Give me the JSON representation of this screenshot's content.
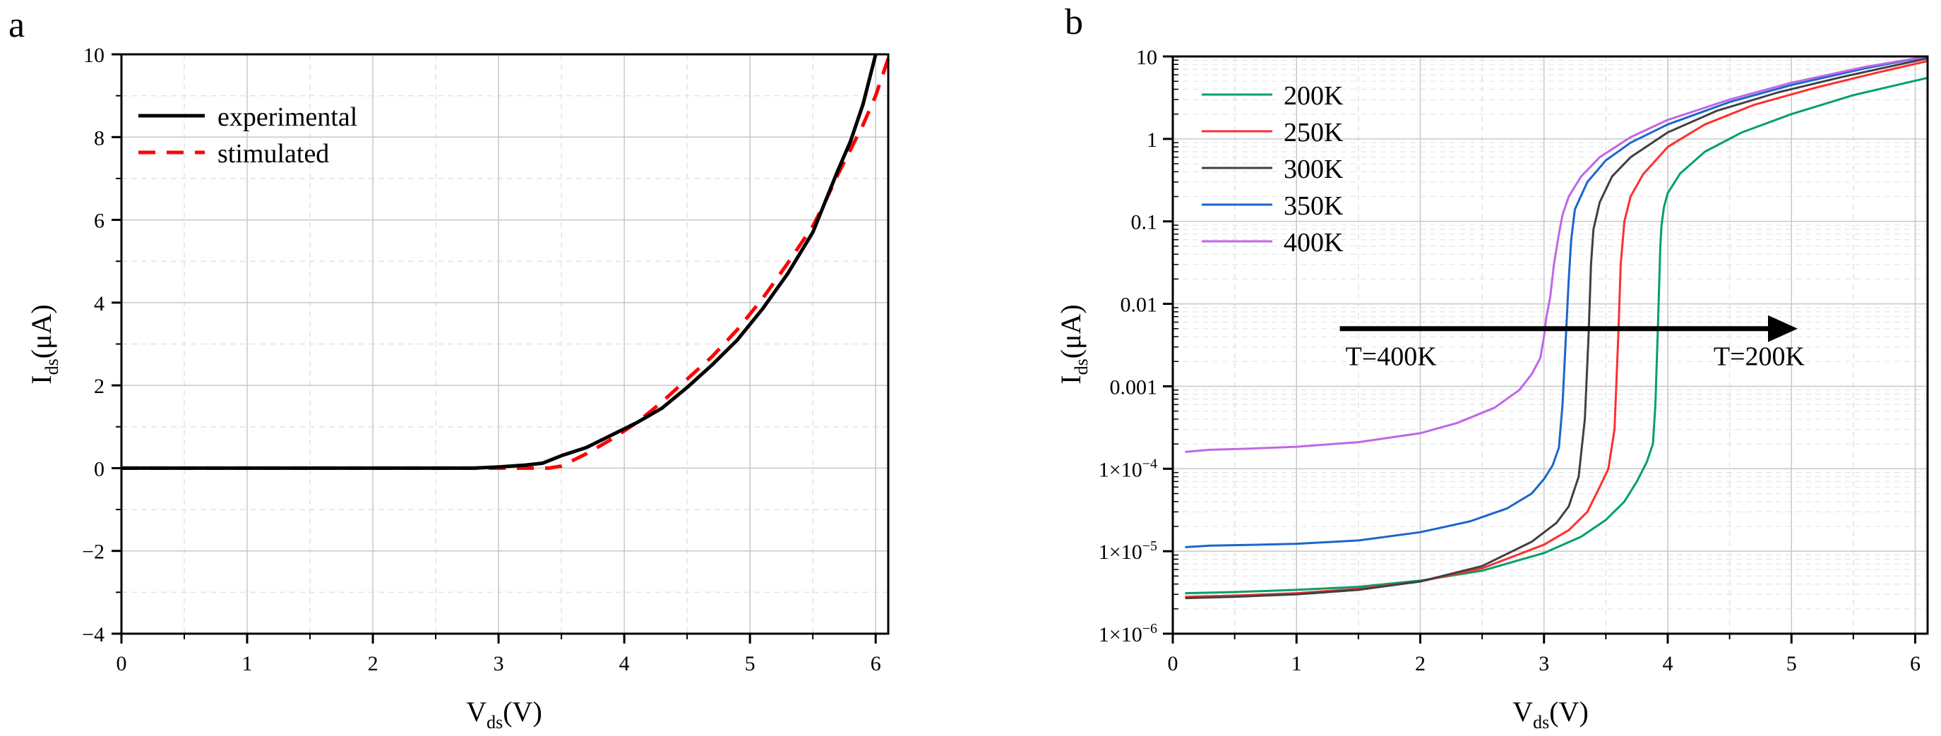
{
  "chart_data": [
    {
      "type": "line",
      "panel_label": "a",
      "xlabel_main": "V",
      "xlabel_sub": "ds",
      "xlabel_rest": "(V)",
      "ylabel_main": "I",
      "ylabel_sub": "ds",
      "ylabel_rest": "(μA)",
      "xlim": [
        0,
        6.1
      ],
      "ylim": [
        -4,
        10
      ],
      "xticks": [
        0,
        1,
        2,
        3,
        4,
        5,
        6
      ],
      "xtick_labels": [
        "0",
        "1",
        "2",
        "3",
        "4",
        "5",
        "6"
      ],
      "yticks": [
        -4,
        -2,
        0,
        2,
        4,
        6,
        8,
        10
      ],
      "ytick_labels": [
        "−4",
        "−2",
        "0",
        "2",
        "4",
        "6",
        "8",
        "10"
      ],
      "grid": true,
      "legend_position": "top-left",
      "series": [
        {
          "name": "experimental",
          "color": "#000000",
          "dash": "solid",
          "x": [
            0,
            0.5,
            1,
            1.5,
            2,
            2.5,
            2.8,
            3.0,
            3.2,
            3.35,
            3.5,
            3.7,
            3.9,
            4.1,
            4.3,
            4.5,
            4.7,
            4.9,
            5.1,
            5.3,
            5.5,
            5.6,
            5.7,
            5.8,
            5.9,
            6.0
          ],
          "y": [
            0,
            0,
            0,
            0,
            0,
            0,
            0,
            0.03,
            0.07,
            0.12,
            0.3,
            0.5,
            0.8,
            1.1,
            1.45,
            1.95,
            2.5,
            3.1,
            3.85,
            4.7,
            5.7,
            6.45,
            7.2,
            7.9,
            8.8,
            10.0
          ]
        },
        {
          "name": "stimulated",
          "color": "#ff0000",
          "dash": "dashed",
          "x": [
            0,
            0.5,
            1,
            1.5,
            2,
            2.5,
            3.0,
            3.2,
            3.4,
            3.5,
            3.7,
            3.9,
            4.1,
            4.3,
            4.5,
            4.7,
            4.9,
            5.1,
            5.3,
            5.5,
            5.6,
            5.7,
            5.8,
            5.9,
            6.0,
            6.1
          ],
          "y": [
            0,
            0,
            0,
            0,
            0,
            0,
            0,
            0,
            0,
            0.05,
            0.35,
            0.7,
            1.1,
            1.6,
            2.15,
            2.7,
            3.35,
            4.1,
            4.95,
            5.85,
            6.45,
            7.1,
            7.7,
            8.3,
            9.0,
            9.9
          ]
        }
      ]
    },
    {
      "type": "line",
      "panel_label": "b",
      "yscale": "log",
      "xlabel_main": "V",
      "xlabel_sub": "ds",
      "xlabel_rest": "(V)",
      "ylabel_main": "I",
      "ylabel_sub": "ds",
      "ylabel_rest": "(μA)",
      "xlim": [
        0,
        6.1
      ],
      "ylim": [
        1e-06,
        10
      ],
      "xticks": [
        0,
        1,
        2,
        3,
        4,
        5,
        6
      ],
      "xtick_labels": [
        "0",
        "1",
        "2",
        "3",
        "4",
        "5",
        "6"
      ],
      "yticks": [
        1e-06,
        1e-05,
        0.0001,
        0.001,
        0.01,
        0.1,
        1,
        10
      ],
      "ytick_labels": [
        {
          "base": "1×10",
          "exp": "−6"
        },
        {
          "base": "1×10",
          "exp": "−5"
        },
        {
          "base": "1×10",
          "exp": "−4"
        },
        {
          "base": "0.001",
          "exp": ""
        },
        {
          "base": "0.01",
          "exp": ""
        },
        {
          "base": "0.1",
          "exp": ""
        },
        {
          "base": "1",
          "exp": ""
        },
        {
          "base": "10",
          "exp": ""
        }
      ],
      "grid": true,
      "legend_position": "top-left",
      "annotation": {
        "left_text": "T=400K",
        "right_text": "T=200K",
        "x_start": 1.35,
        "x_end": 5.05,
        "y": 0.005
      },
      "series": [
        {
          "name": "200K",
          "color": "#00a06b",
          "x": [
            0.1,
            0.5,
            1,
            1.5,
            2,
            2.5,
            3,
            3.3,
            3.5,
            3.65,
            3.75,
            3.83,
            3.88,
            3.9,
            3.92,
            3.94,
            3.95,
            3.97,
            4.0,
            4.1,
            4.3,
            4.6,
            5.0,
            5.5,
            6.1
          ],
          "y": [
            3.1e-06,
            3.2e-06,
            3.4e-06,
            3.7e-06,
            4.4e-06,
            5.8e-06,
            9.5e-06,
            1.5e-05,
            2.4e-05,
            4e-05,
            7e-05,
            0.00012,
            0.0002,
            0.0006,
            0.005,
            0.05,
            0.09,
            0.15,
            0.22,
            0.38,
            0.7,
            1.2,
            2.0,
            3.4,
            5.5
          ]
        },
        {
          "name": "250K",
          "color": "#ff2e2e",
          "x": [
            0.1,
            0.5,
            1,
            1.5,
            2,
            2.5,
            3,
            3.2,
            3.35,
            3.45,
            3.52,
            3.57,
            3.6,
            3.62,
            3.65,
            3.7,
            3.8,
            4.0,
            4.3,
            4.7,
            5.2,
            5.7,
            6.1
          ],
          "y": [
            2.8e-06,
            2.9e-06,
            3.1e-06,
            3.5e-06,
            4.3e-06,
            6.2e-06,
            1.2e-05,
            1.8e-05,
            3e-05,
            6e-05,
            0.0001,
            0.0003,
            0.004,
            0.03,
            0.1,
            0.2,
            0.37,
            0.8,
            1.5,
            2.6,
            4.2,
            6.4,
            8.8
          ]
        },
        {
          "name": "300K",
          "color": "#404040",
          "x": [
            0.1,
            0.5,
            1,
            1.5,
            2,
            2.5,
            2.9,
            3.1,
            3.2,
            3.28,
            3.33,
            3.36,
            3.38,
            3.4,
            3.45,
            3.55,
            3.7,
            4.0,
            4.4,
            4.9,
            5.4,
            6.1
          ],
          "y": [
            2.7e-06,
            2.8e-06,
            3e-06,
            3.4e-06,
            4.3e-06,
            6.6e-06,
            1.3e-05,
            2.2e-05,
            3.5e-05,
            8e-05,
            0.0004,
            0.004,
            0.03,
            0.08,
            0.17,
            0.35,
            0.6,
            1.2,
            2.2,
            3.7,
            5.6,
            9.5
          ]
        },
        {
          "name": "350K",
          "color": "#1a66cc",
          "x": [
            0.1,
            0.3,
            0.6,
            1,
            1.5,
            2,
            2.4,
            2.7,
            2.9,
            3.0,
            3.07,
            3.12,
            3.15,
            3.18,
            3.2,
            3.22,
            3.25,
            3.35,
            3.5,
            3.7,
            4.0,
            4.5,
            5.0,
            5.6,
            6.1
          ],
          "y": [
            1.12e-05,
            1.17e-05,
            1.19e-05,
            1.23e-05,
            1.35e-05,
            1.7e-05,
            2.3e-05,
            3.3e-05,
            5e-05,
            7.5e-05,
            0.00011,
            0.00018,
            0.0006,
            0.005,
            0.02,
            0.06,
            0.14,
            0.3,
            0.55,
            0.9,
            1.5,
            2.8,
            4.5,
            7.2,
            10.0
          ]
        },
        {
          "name": "400K",
          "color": "#c066e8",
          "x": [
            0.1,
            0.3,
            0.6,
            1,
            1.5,
            2,
            2.3,
            2.6,
            2.8,
            2.9,
            2.97,
            3.0,
            3.02,
            3.05,
            3.08,
            3.12,
            3.15,
            3.2,
            3.3,
            3.45,
            3.7,
            4.0,
            4.5,
            5.0,
            5.6,
            6.1
          ],
          "y": [
            0.00016,
            0.00017,
            0.000175,
            0.000185,
            0.00021,
            0.00027,
            0.00036,
            0.00055,
            0.0009,
            0.0014,
            0.0022,
            0.004,
            0.007,
            0.012,
            0.03,
            0.07,
            0.12,
            0.2,
            0.35,
            0.6,
            1.05,
            1.7,
            3.0,
            4.8,
            7.5,
            10.0
          ]
        }
      ]
    }
  ]
}
